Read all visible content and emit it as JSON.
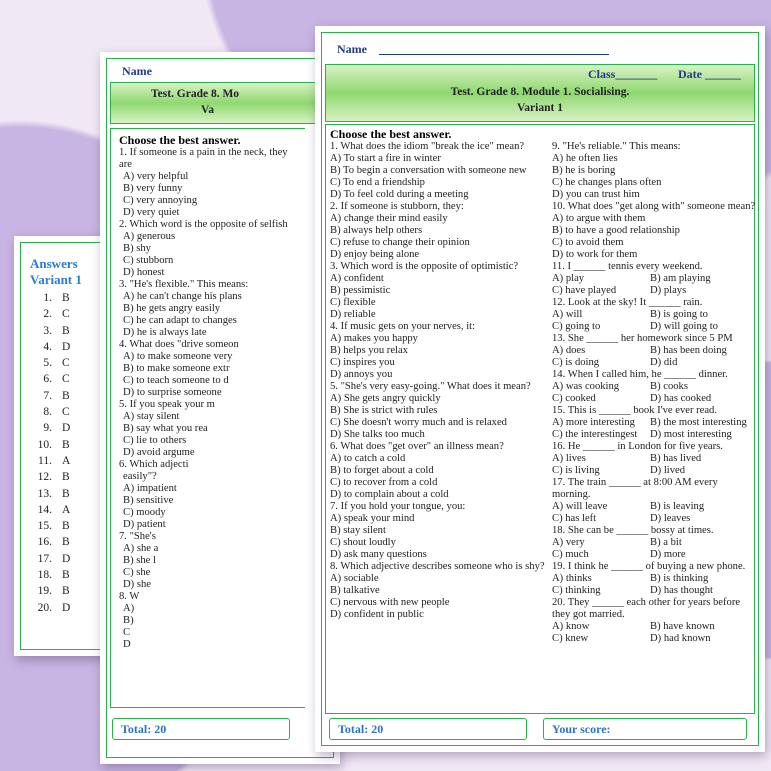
{
  "colors": {
    "background": "#f1e8f6",
    "blob": "#c8b5e3",
    "border": "#27b24a",
    "band": "#8fd870",
    "heading_blue": "#1f3a86",
    "answer_blue": "#2a7bd6"
  },
  "answers_sheet": {
    "title": "Answers",
    "variant": "Variant 1",
    "answers": [
      [
        "1.",
        "B"
      ],
      [
        "2.",
        "C"
      ],
      [
        "3.",
        "B"
      ],
      [
        "4.",
        "D"
      ],
      [
        "5.",
        "C"
      ],
      [
        "6.",
        "C"
      ],
      [
        "7.",
        "B"
      ],
      [
        "8.",
        "C"
      ],
      [
        "9.",
        "D"
      ],
      [
        "10.",
        "B"
      ],
      [
        "11.",
        "A"
      ],
      [
        "12.",
        "B"
      ],
      [
        "13.",
        "B"
      ],
      [
        "14.",
        "A"
      ],
      [
        "15.",
        "B"
      ],
      [
        "16.",
        "B"
      ],
      [
        "17.",
        "D"
      ],
      [
        "18.",
        "B"
      ],
      [
        "19.",
        "B"
      ],
      [
        "20.",
        "D"
      ]
    ]
  },
  "middle_sheet": {
    "name_label": "Name",
    "title": "Test. Grade 8. Mo",
    "variant": "Va",
    "section": "Choose the best answer.",
    "lines": [
      "1. If someone is a pain in the neck, they are",
      "A) very helpful",
      "B) very funny",
      "C) very annoying",
      "D) very quiet",
      "2. Which word is the opposite of selfish",
      "A) generous",
      "B) shy",
      "C) stubborn",
      "D) honest",
      "3. \"He's flexible.\" This means:",
      "A) he can't change his plans",
      "B) he gets angry easily",
      "C) he can adapt to changes",
      "D) he is always late",
      "4. What does \"drive someon",
      "A) to make someone very",
      "B) to make someone extr",
      "C) to teach someone to d",
      "D) to surprise someone",
      "5. If you speak your m",
      "A) stay silent",
      "B) say what you rea",
      "C) lie to others",
      "D) avoid argume",
      "6. Which adjecti",
      "easily\"?",
      "A) impatient",
      "B) sensitive",
      "C) moody",
      "D) patient",
      "7. \"She's",
      "A) she a",
      "B) she l",
      "C) she",
      "D) she",
      "8. W",
      "A)",
      "B)",
      "C",
      "D"
    ],
    "total": "Total: 20"
  },
  "front_sheet": {
    "name_label": "Name",
    "class_label": "Class",
    "date_label": "Date",
    "title": "Test. Grade 8. Module 1. Socialising.",
    "variant": "Variant 1",
    "section": "Choose the best answer.",
    "left_questions": [
      {
        "q": "1. What does the idiom \"break the ice\" mean?",
        "opts": [
          "A) To start a fire in winter",
          "B) To begin a conversation with someone new",
          "C) To end a friendship",
          "D) To feel cold during a meeting"
        ]
      },
      {
        "q": "2. If someone is stubborn, they:",
        "opts": [
          "A) change their mind easily",
          "B) always help others",
          "C) refuse to change their opinion",
          "D) enjoy being alone"
        ]
      },
      {
        "q": "3. Which word is the opposite of optimistic?",
        "opts": [
          "A) confident",
          "B) pessimistic",
          "C) flexible",
          "D) reliable"
        ]
      },
      {
        "q": "4. If music gets on your nerves, it:",
        "opts": [
          "A) makes you happy",
          "B) helps you relax",
          "C) inspires you",
          "D) annoys you"
        ]
      },
      {
        "q": "5. \"She's very easy-going.\" What does it mean?",
        "opts": [
          "A) She gets angry quickly",
          "B) She is strict with rules",
          "C) She doesn't worry much and is relaxed",
          "D) She talks too much"
        ]
      },
      {
        "q": "6. What does \"get over\" an illness mean?",
        "opts": [
          "A) to catch a cold",
          "B) to forget about a cold",
          "C) to recover from a cold",
          "D) to complain about a cold"
        ]
      },
      {
        "q": "7. If you hold your tongue, you:",
        "opts": [
          "A) speak your mind",
          "B) stay silent",
          "C) shout loudly",
          "D) ask many questions"
        ]
      },
      {
        "q": "8. Which adjective describes someone who is shy?",
        "opts": [
          "A) sociable",
          "B) talkative",
          "C) nervous with new people",
          "D) confident in public"
        ]
      }
    ],
    "right_questions_a": [
      {
        "q": "9. \"He's reliable.\" This means:",
        "opts": [
          "A) he often lies",
          "B) he is boring",
          "C) he changes plans often",
          "D) you can trust him"
        ]
      },
      {
        "q": "10. What does \"get along with\" someone mean?",
        "opts": [
          "A) to argue with them",
          "B) to have a good relationship",
          "C) to avoid them",
          "D) to work for them"
        ]
      }
    ],
    "right_questions_b": [
      {
        "q": "11. I ______ tennis every weekend.",
        "opts": [
          "A) play",
          "B) am playing",
          "C) have played",
          "D) plays"
        ]
      },
      {
        "q": "12. Look at the sky! It ______ rain.",
        "opts": [
          "A) will",
          "B) is going to",
          "C) going to",
          "D) will going to"
        ]
      },
      {
        "q": "13. She ______ her homework since 5 PM",
        "opts": [
          "A) does",
          "B) has been doing",
          "C) is doing",
          "D) did"
        ]
      },
      {
        "q": "14. When I called him, he ______ dinner.",
        "opts": [
          "A) was cooking",
          "B) cooks",
          "C) cooked",
          "D) has cooked"
        ]
      },
      {
        "q": "15. This is ______ book I've ever read.",
        "opts": [
          "A) more interesting",
          "B) the most interesting",
          "C) the interestingest",
          "D) most interesting"
        ]
      },
      {
        "q": "16. He ______ in London for five years.",
        "opts": [
          "A) lives",
          "B) has lived",
          "C) is living",
          "D) lived"
        ]
      },
      {
        "q": "17. The train ______ at 8:00 AM every morning.",
        "opts": [
          "A) will leave",
          "B) is leaving",
          "C) has left",
          "D) leaves"
        ]
      },
      {
        "q": "18. She can be ______ bossy at times.",
        "opts": [
          "A) very",
          "B) a bit",
          "C) much",
          "D) more"
        ]
      },
      {
        "q": "19. I think he ______ of buying a new phone.",
        "opts": [
          "A) thinks",
          "B) is thinking",
          "C) thinking",
          "D) has thought"
        ]
      },
      {
        "q": "20. They ______ each other for years before they got married.",
        "opts": [
          "A) know",
          "B) have known",
          "C) knew",
          "D) had known"
        ]
      }
    ],
    "total": "Total: 20",
    "score": "Your score:"
  }
}
